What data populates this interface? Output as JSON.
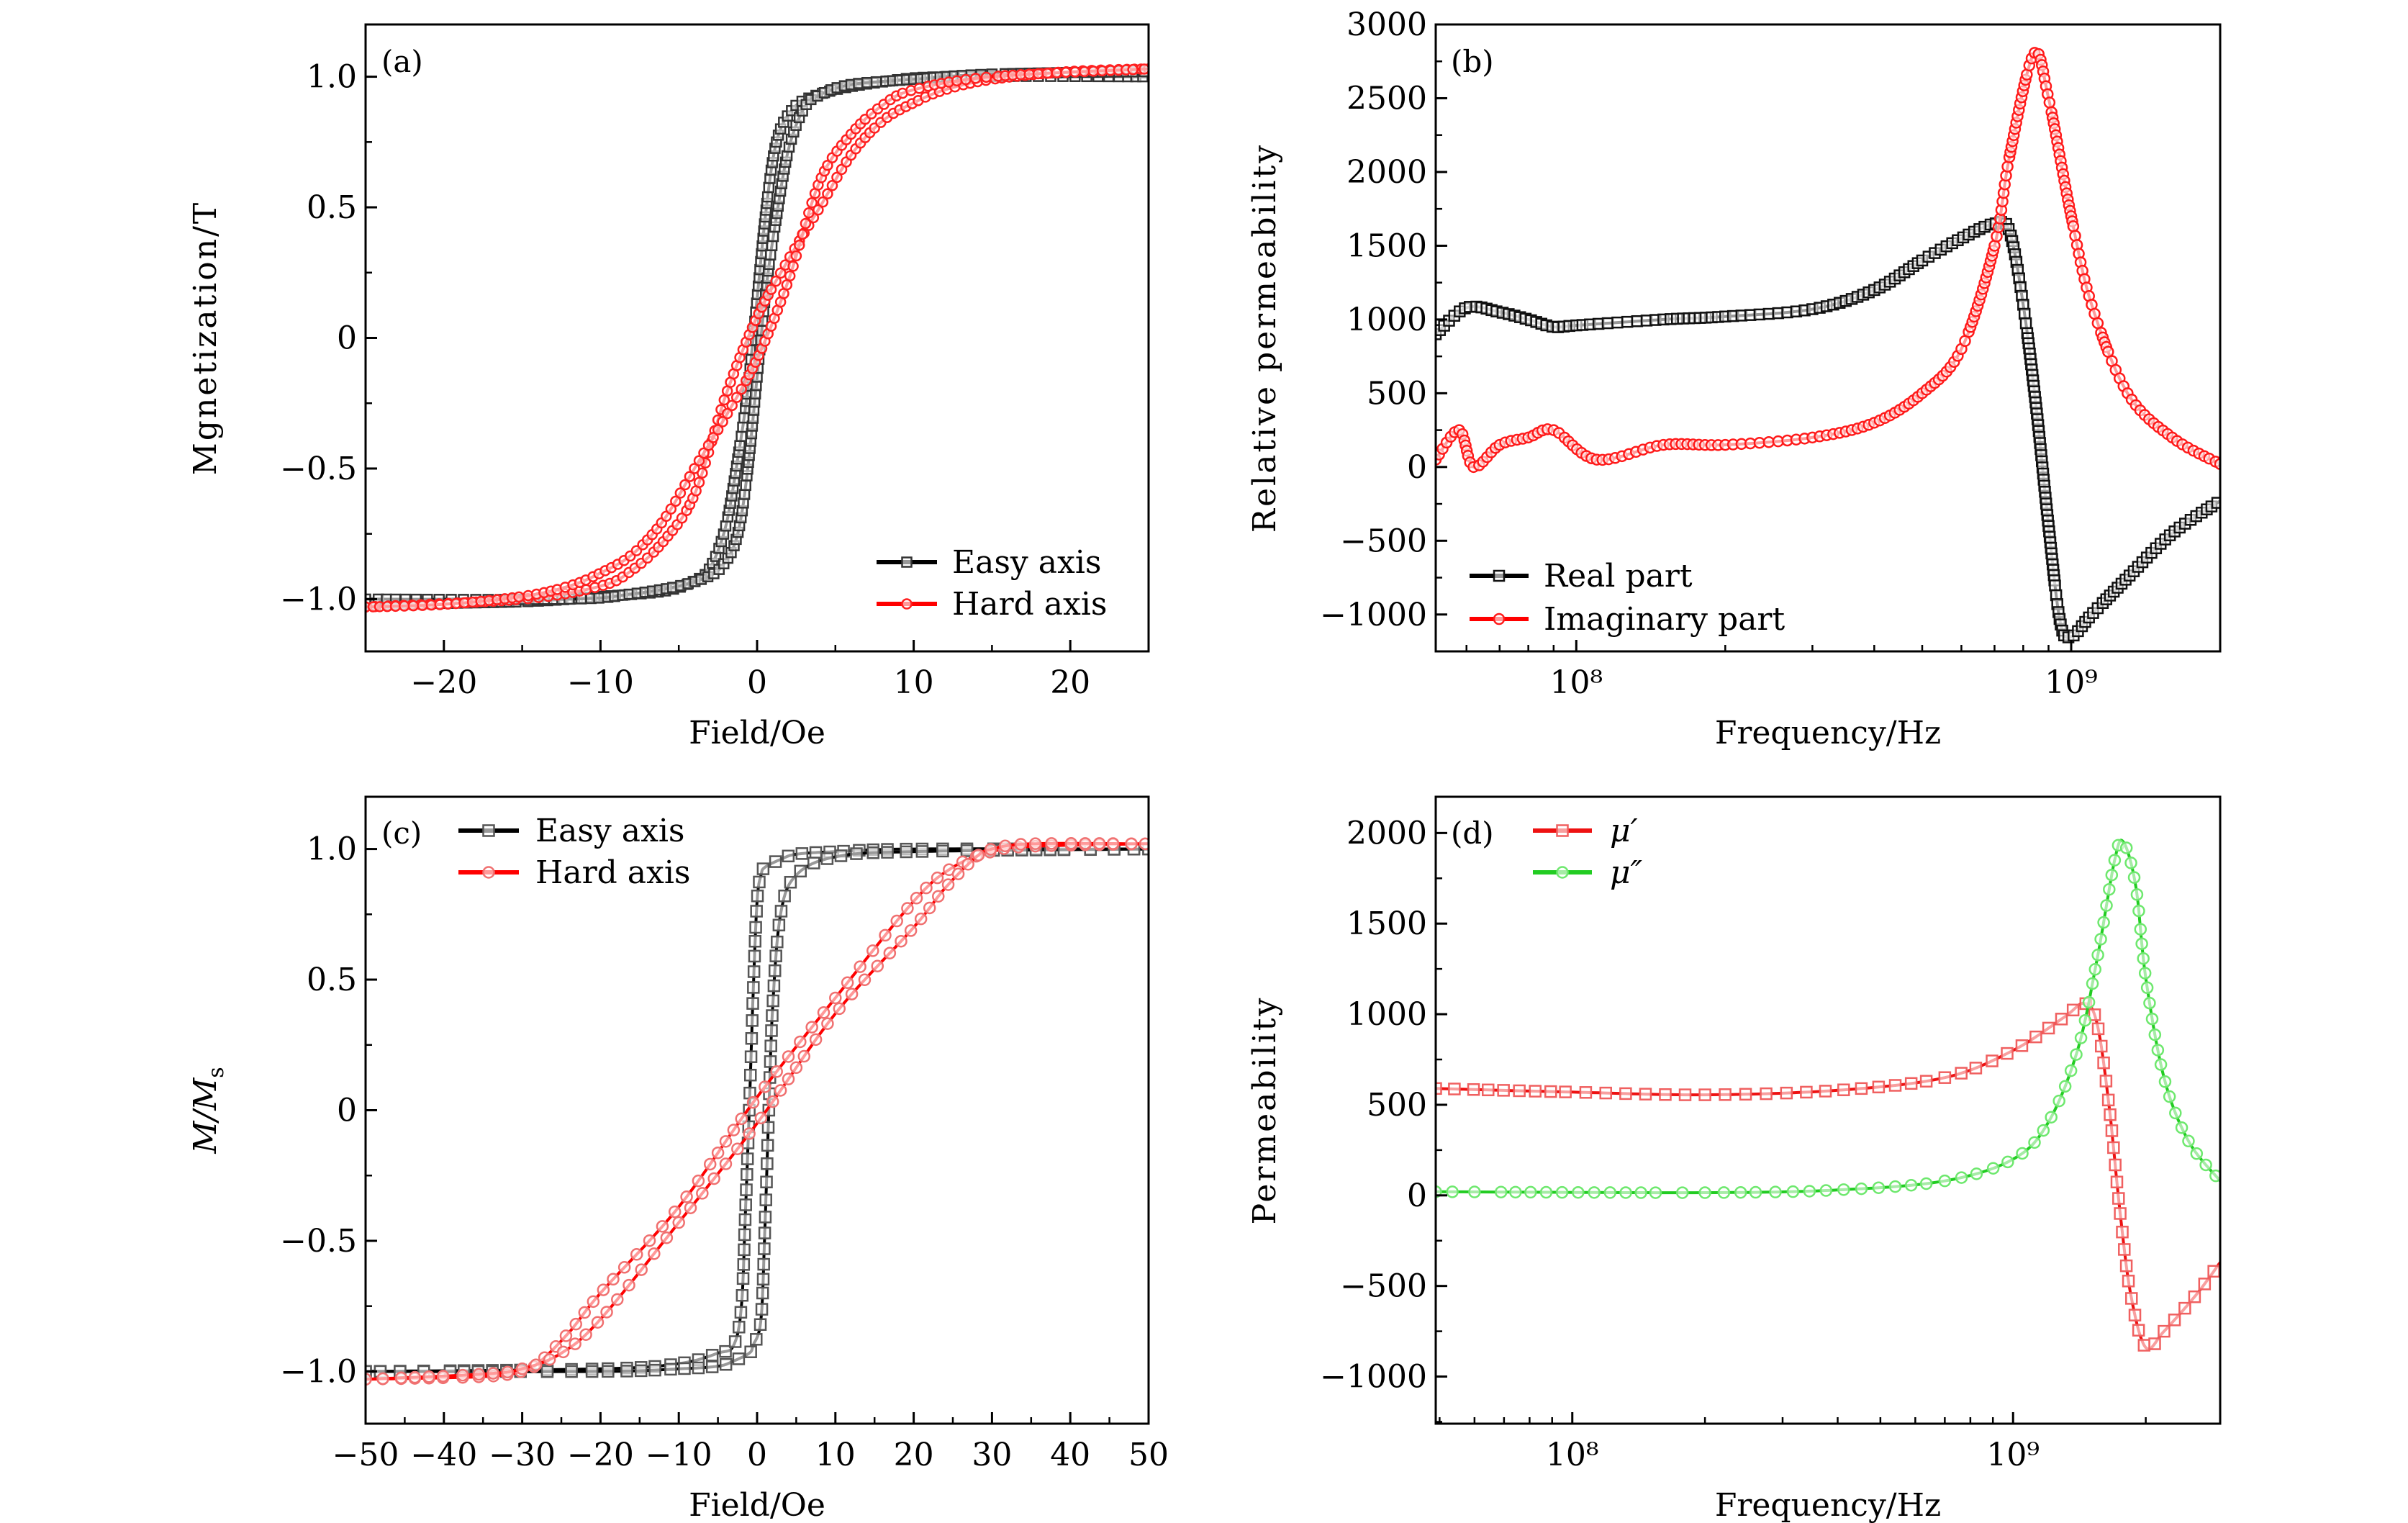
{
  "chart_data": [
    {
      "panel": "(a)",
      "type": "line",
      "xlabel": "Field/Oe",
      "ylabel": "Mgnetization/T",
      "xscale": "linear",
      "xlim": [
        -25,
        25
      ],
      "ylim": [
        -1.2,
        1.2
      ],
      "xticks": [
        -20,
        -10,
        0,
        10,
        20
      ],
      "xtick_labels": [
        "−20",
        "−10",
        "0",
        "10",
        "20"
      ],
      "yticks": [
        -1.0,
        -0.5,
        0,
        0.5,
        1.0
      ],
      "ytick_labels": [
        "−1.0",
        "−0.5",
        "0",
        "0.5",
        "1.0"
      ],
      "grid": false,
      "legend_position": "bottom-right",
      "series": [
        {
          "name": "Easy axis",
          "color": "#000000",
          "marker_color": "#333333",
          "marker": "square",
          "branches": [
            {
              "x": [
                -25,
                -15,
                -10,
                -6,
                -4,
                -3,
                -2,
                -1.2,
                -0.6,
                0,
                0.5,
                1,
                1.5,
                2.2,
                3,
                5,
                8,
                12,
                25
              ],
              "y": [
                -1.02,
                -1.01,
                -0.99,
                -0.97,
                -0.93,
                -0.88,
                -0.72,
                -0.45,
                -0.2,
                0.15,
                0.45,
                0.68,
                0.8,
                0.87,
                0.91,
                0.95,
                0.98,
                1.0,
                1.0
              ]
            },
            {
              "x": [
                -25,
                -12,
                -8,
                -5,
                -3,
                -2.2,
                -1.5,
                -1,
                -0.5,
                0,
                0.6,
                1.2,
                2,
                3,
                4,
                6,
                10,
                15,
                25
              ],
              "y": [
                -1.0,
                -1.0,
                -0.98,
                -0.95,
                -0.91,
                -0.87,
                -0.8,
                -0.68,
                -0.45,
                -0.15,
                0.2,
                0.45,
                0.72,
                0.88,
                0.93,
                0.97,
                0.99,
                1.01,
                1.02
              ]
            }
          ]
        },
        {
          "name": "Hard axis",
          "color": "#ff0000",
          "marker_color": "#ff2020",
          "marker": "circle",
          "branches": [
            {
              "x": [
                -25,
                -15,
                -10,
                -8,
                -6,
                -4,
                -2,
                0,
                2,
                4,
                6,
                8,
                10,
                12,
                15,
                20,
                25
              ],
              "y": [
                -1.03,
                -1.0,
                -0.95,
                -0.89,
                -0.78,
                -0.6,
                -0.22,
                0.08,
                0.3,
                0.5,
                0.7,
                0.83,
                0.9,
                0.95,
                0.99,
                1.02,
                1.03
              ]
            },
            {
              "x": [
                -25,
                -20,
                -15,
                -12,
                -10,
                -8,
                -6,
                -4,
                -2,
                0,
                2,
                4,
                6,
                8,
                10,
                15,
                25
              ],
              "y": [
                -1.03,
                -1.02,
                -0.99,
                -0.95,
                -0.9,
                -0.83,
                -0.7,
                -0.5,
                -0.3,
                -0.08,
                0.22,
                0.6,
                0.78,
                0.89,
                0.95,
                1.0,
                1.03
              ]
            }
          ]
        }
      ]
    },
    {
      "panel": "(b)",
      "type": "line",
      "xlabel": "Frequency/Hz",
      "ylabel": "Relative permeability",
      "xscale": "log",
      "xlim": [
        52000000,
        2000000000
      ],
      "ylim": [
        -1250,
        3000
      ],
      "xticks": [
        100000000,
        1000000000
      ],
      "xtick_labels": [
        "10⁸",
        "10⁹"
      ],
      "yticks": [
        -1000,
        -500,
        0,
        500,
        1000,
        1500,
        2000,
        2500,
        3000
      ],
      "ytick_labels": [
        "−1000",
        "−500",
        "0",
        "500",
        "1000",
        "1500",
        "2000",
        "2500",
        "3000"
      ],
      "grid": false,
      "legend_position": "bottom-left",
      "series": [
        {
          "name": "Real part",
          "color": "#000000",
          "marker_color": "#111111",
          "marker": "square",
          "branches": [
            {
              "x": [
                52000000,
                60000000,
                70000000,
                80000000,
                90000000,
                100000000,
                150000000,
                200000000,
                300000000,
                400000000,
                500000000,
                600000000,
                700000000,
                750000000,
                800000000,
                850000000,
                900000000,
                950000000,
                1000000000,
                1100000000,
                1300000000,
                1600000000,
                2000000000
              ],
              "y": [
                900,
                1080,
                1050,
                1000,
                950,
                960,
                1000,
                1020,
                1070,
                1200,
                1400,
                1550,
                1650,
                1600,
                1100,
                400,
                -400,
                -1050,
                -1150,
                -1000,
                -750,
                -450,
                -230
              ]
            }
          ]
        },
        {
          "name": "Imaginary part",
          "color": "#ff0000",
          "marker_color": "#ff1a1a",
          "marker": "circle",
          "branches": [
            {
              "x": [
                52000000,
                58000000,
                62000000,
                70000000,
                80000000,
                90000000,
                110000000,
                150000000,
                200000000,
                300000000,
                400000000,
                500000000,
                600000000,
                700000000,
                750000000,
                840000000,
                900000000,
                1000000000,
                1100000000,
                1300000000,
                1600000000,
                2000000000
              ],
              "y": [
                50,
                250,
                0,
                150,
                200,
                250,
                50,
                150,
                150,
                200,
                300,
                500,
                800,
                1500,
                2100,
                2800,
                2500,
                1700,
                1100,
                500,
                200,
                20
              ]
            }
          ]
        }
      ]
    },
    {
      "panel": "(c)",
      "type": "line",
      "xlabel": "Field/Oe",
      "ylabel": {
        "text": "M/M",
        "subscript": "s"
      },
      "xscale": "linear",
      "xlim": [
        -50,
        50
      ],
      "ylim": [
        -1.2,
        1.2
      ],
      "xticks": [
        -50,
        -40,
        -30,
        -20,
        -10,
        0,
        10,
        20,
        30,
        40,
        50
      ],
      "xtick_labels": [
        "−50",
        "−40",
        "−30",
        "−20",
        "−10",
        "0",
        "10",
        "20",
        "30",
        "40",
        "50"
      ],
      "yticks": [
        -1.0,
        -0.5,
        0,
        0.5,
        1.0
      ],
      "ytick_labels": [
        "−1.0",
        "−0.5",
        "0",
        "0.5",
        "1.0"
      ],
      "grid": false,
      "legend_position": "top-left",
      "series": [
        {
          "name": "Easy axis",
          "color": "#000000",
          "marker_color": "#555555",
          "marker": "square",
          "branches": [
            {
              "x": [
                -50,
                -20,
                -10,
                -5,
                -3,
                -2,
                -1.5,
                -1,
                -0.5,
                0,
                0.5,
                1,
                3,
                5,
                10,
                20,
                50
              ],
              "y": [
                -1.0,
                -0.99,
                -0.97,
                -0.93,
                -0.9,
                -0.75,
                -0.4,
                0.0,
                0.45,
                0.8,
                0.9,
                0.93,
                0.96,
                0.98,
                0.99,
                1.0,
                1.0
              ]
            },
            {
              "x": [
                -50,
                -20,
                -10,
                -5,
                -3,
                -1,
                -0.5,
                0.5,
                1,
                1.5,
                2,
                3,
                5,
                10,
                20,
                50
              ],
              "y": [
                -1.0,
                -1.0,
                -0.99,
                -0.98,
                -0.96,
                -0.93,
                -0.9,
                -0.8,
                -0.45,
                0.0,
                0.4,
                0.75,
                0.9,
                0.97,
                0.99,
                1.0
              ]
            }
          ]
        },
        {
          "name": "Hard axis",
          "color": "#ff0000",
          "marker_color": "#f07070",
          "marker": "circle",
          "branches": [
            {
              "x": [
                -50,
                -35,
                -30,
                -28,
                -24,
                -20,
                -10,
                0,
                10,
                20,
                25,
                30,
                35,
                50
              ],
              "y": [
                -1.03,
                -1.02,
                -1.0,
                -0.97,
                -0.85,
                -0.7,
                -0.37,
                0.05,
                0.43,
                0.8,
                0.93,
                0.99,
                1.01,
                1.02
              ]
            },
            {
              "x": [
                -50,
                -35,
                -30,
                -25,
                -20,
                -10,
                0,
                10,
                20,
                24,
                28,
                30,
                35,
                50
              ],
              "y": [
                -1.03,
                -1.01,
                -0.99,
                -0.93,
                -0.8,
                -0.43,
                -0.05,
                0.37,
                0.7,
                0.85,
                0.97,
                1.0,
                1.02,
                1.02
              ]
            }
          ]
        }
      ]
    },
    {
      "panel": "(d)",
      "type": "line",
      "xlabel": "Frequency/Hz",
      "ylabel": "Permeability",
      "xscale": "log",
      "xlim": [
        49000000,
        2950000000
      ],
      "ylim": [
        -1260,
        2200
      ],
      "xticks": [
        100000000,
        1000000000
      ],
      "xtick_labels": [
        "10⁸",
        "10⁹"
      ],
      "yticks": [
        -1000,
        -500,
        0,
        500,
        1000,
        1500,
        2000
      ],
      "ytick_labels": [
        "−1000",
        "−500",
        "0",
        "500",
        "1000",
        "1500",
        "2000"
      ],
      "grid": false,
      "legend_position": "top-left",
      "series": [
        {
          "name": "μ′",
          "color": "#ee1111",
          "marker_color": "#f06060",
          "marker": "square",
          "branches": [
            {
              "x": [
                49000000,
                100000000,
                200000000,
                400000000,
                700000000,
                1000000000,
                1300000000,
                1450000000,
                1550000000,
                1650000000,
                1750000000,
                1850000000,
                2000000000,
                2200000000,
                2600000000,
                2950000000
              ],
              "y": [
                590,
                570,
                555,
                580,
                650,
                800,
                980,
                1060,
                950,
                500,
                -100,
                -550,
                -840,
                -750,
                -550,
                -370
              ]
            }
          ]
        },
        {
          "name": "μ″",
          "color": "#22cc22",
          "marker_color": "#6ee86e",
          "marker": "circle",
          "branches": [
            {
              "x": [
                49000000,
                200000000,
                400000000,
                700000000,
                1000000000,
                1200000000,
                1400000000,
                1550000000,
                1700000000,
                1780000000,
                1900000000,
                2000000000,
                2200000000,
                2500000000,
                2950000000
              ],
              "y": [
                20,
                15,
                30,
                80,
                200,
                400,
                800,
                1300,
                1850,
                1950,
                1700,
                1200,
                650,
                300,
                80
              ]
            }
          ]
        }
      ]
    }
  ]
}
